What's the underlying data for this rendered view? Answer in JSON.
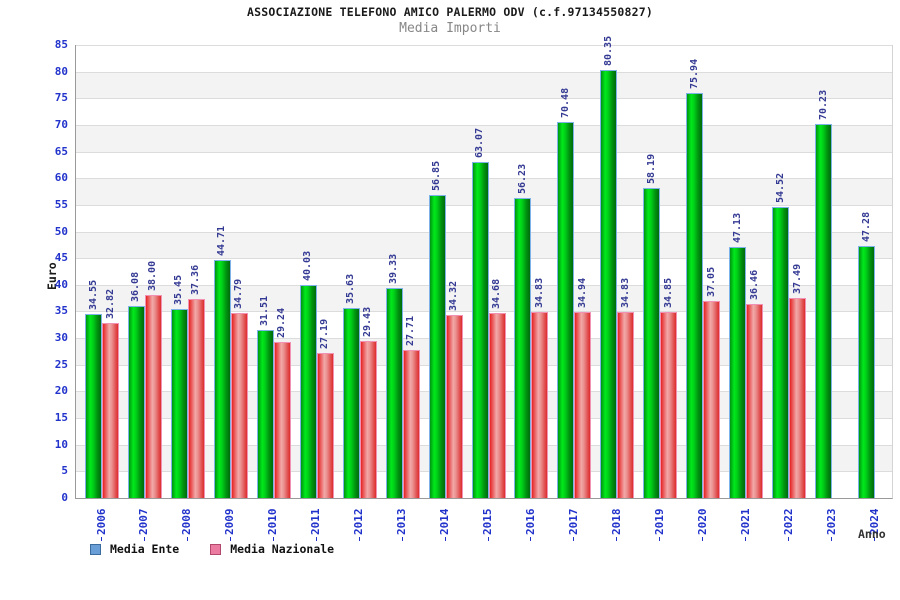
{
  "header": {
    "title": "ASSOCIAZIONE TELEFONO AMICO PALERMO ODV (c.f.97134550827)",
    "subtitle": "Media Importi"
  },
  "chart_data": {
    "type": "bar",
    "title": "ASSOCIAZIONE TELEFONO AMICO PALERMO ODV (c.f.97134550827)",
    "subtitle": "Media Importi",
    "categories": [
      "2006",
      "2007",
      "2008",
      "2009",
      "2010",
      "2011",
      "2012",
      "2013",
      "2014",
      "2015",
      "2016",
      "2017",
      "2018",
      "2019",
      "2020",
      "2021",
      "2022",
      "2023",
      "2024"
    ],
    "series": [
      {
        "name": "Media Ente",
        "bar_color_gradient": [
          "#009410",
          "#00e81c",
          "#006b0c"
        ],
        "bar_border_color": "#7db3e8",
        "values": [
          34.55,
          36.08,
          35.45,
          44.71,
          31.51,
          40.03,
          35.63,
          39.33,
          56.85,
          63.07,
          56.23,
          70.48,
          80.35,
          58.19,
          75.94,
          47.13,
          54.52,
          70.23,
          47.28
        ]
      },
      {
        "name": "Media Nazionale",
        "bar_color_gradient": [
          "#e62424",
          "#f2a8a8",
          "#dc2c2c"
        ],
        "bar_border_color": "#f191b3",
        "values": [
          32.82,
          38.0,
          37.36,
          34.79,
          29.24,
          27.19,
          29.43,
          27.71,
          34.32,
          34.68,
          34.83,
          34.94,
          34.83,
          34.85,
          37.05,
          36.46,
          37.49,
          null,
          null
        ]
      }
    ],
    "ylabel": "Euro",
    "xlabel": "Anno",
    "ylim": [
      0,
      85
    ],
    "ytick_step": 5,
    "yticks": [
      0,
      5,
      10,
      15,
      20,
      25,
      30,
      35,
      40,
      45,
      50,
      55,
      60,
      65,
      70,
      75,
      80,
      85
    ],
    "grid": "horizontal",
    "band_colors": [
      "#ffffff",
      "#f3f3f3"
    ],
    "gridline_color": "#dcdcdc",
    "tick_label_color": "#2233cc",
    "value_label_color": "#343a93",
    "value_label_format": "two_decimals",
    "legend_position": "bottom-left"
  },
  "legend": {
    "items": [
      {
        "label": "Media Ente",
        "swatch_fill": "#6a9ed6",
        "swatch_border": "#3c6c9e"
      },
      {
        "label": "Media Nazionale",
        "swatch_fill": "#ec7ba2",
        "swatch_border": "#b2486e"
      }
    ]
  }
}
